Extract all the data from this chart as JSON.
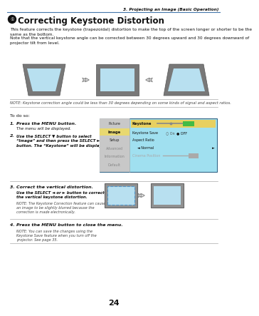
{
  "page_number": "24",
  "header_text": "3. Projecting an Image (Basic Operation)",
  "section_title": "Correcting Keystone Distortion",
  "body_text1": "This feature corrects the keystone (trapezoidal) distortion to make the top of the screen longer or shorter to be the\nsame as the bottom.",
  "body_text2": "Note that the vertical keystone angle can be corrected between 30 degrees upward and 30 degrees downward of\nprojector tilt from level.",
  "note_text": "NOTE: Keystone correction angle could be less than 30 degrees depending on some kinds of signal and aspect ratios.",
  "to_do_text": "To do so:",
  "bg_color": "#ffffff",
  "screen_fill": "#b8e0f0",
  "screen_dark": "#808080",
  "menu_cyan": "#a0e0f0",
  "menu_gray": "#c8c8c8",
  "menu_yellow": "#e8d060",
  "menu_border": "#4488aa"
}
